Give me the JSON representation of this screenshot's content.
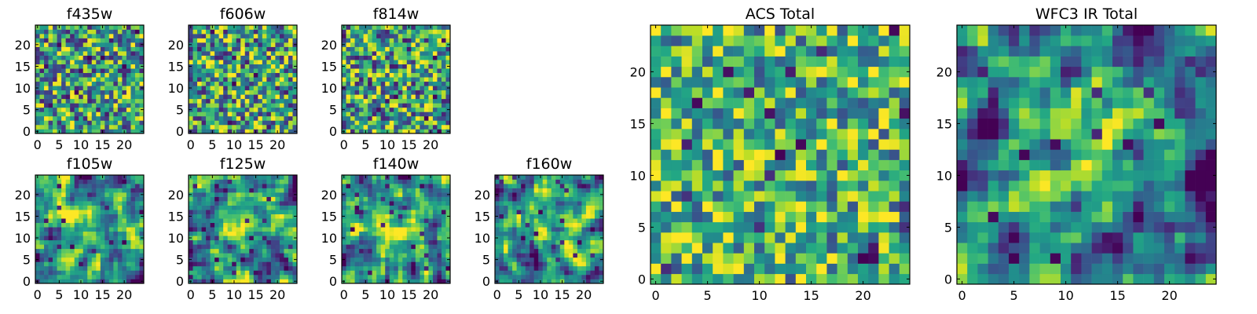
{
  "chart_data": [
    {
      "type": "heatmap",
      "title": "f435w",
      "grid_size": 25,
      "colormap": "viridis",
      "x_ticks": [
        "0",
        "5",
        "10",
        "15",
        "20"
      ],
      "y_ticks": [
        "0",
        "5",
        "10",
        "15",
        "20"
      ],
      "xlim": [
        0,
        24
      ],
      "ylim": [
        0,
        24
      ],
      "pattern": "noise",
      "seed": 11
    },
    {
      "type": "heatmap",
      "title": "f606w",
      "grid_size": 25,
      "colormap": "viridis",
      "x_ticks": [
        "0",
        "5",
        "10",
        "15",
        "20"
      ],
      "y_ticks": [
        "0",
        "5",
        "10",
        "15",
        "20"
      ],
      "xlim": [
        0,
        24
      ],
      "ylim": [
        0,
        24
      ],
      "pattern": "noise",
      "seed": 23
    },
    {
      "type": "heatmap",
      "title": "f814w",
      "grid_size": 25,
      "colormap": "viridis",
      "x_ticks": [
        "0",
        "5",
        "10",
        "15",
        "20"
      ],
      "y_ticks": [
        "0",
        "5",
        "10",
        "15",
        "20"
      ],
      "xlim": [
        0,
        24
      ],
      "ylim": [
        0,
        24
      ],
      "pattern": "noise",
      "seed": 37
    },
    {
      "type": "heatmap",
      "title": "f105w",
      "grid_size": 25,
      "colormap": "viridis",
      "x_ticks": [
        "0",
        "5",
        "10",
        "15",
        "20"
      ],
      "y_ticks": [
        "0",
        "5",
        "10",
        "15",
        "20"
      ],
      "xlim": [
        0,
        24
      ],
      "ylim": [
        0,
        24
      ],
      "pattern": "smooth",
      "seed": 41
    },
    {
      "type": "heatmap",
      "title": "f125w",
      "grid_size": 25,
      "colormap": "viridis",
      "x_ticks": [
        "0",
        "5",
        "10",
        "15",
        "20"
      ],
      "y_ticks": [
        "0",
        "5",
        "10",
        "15",
        "20"
      ],
      "xlim": [
        0,
        24
      ],
      "ylim": [
        0,
        24
      ],
      "pattern": "smooth",
      "seed": 53
    },
    {
      "type": "heatmap",
      "title": "f140w",
      "grid_size": 25,
      "colormap": "viridis",
      "x_ticks": [
        "0",
        "5",
        "10",
        "15",
        "20"
      ],
      "y_ticks": [
        "0",
        "5",
        "10",
        "15",
        "20"
      ],
      "xlim": [
        0,
        24
      ],
      "ylim": [
        0,
        24
      ],
      "pattern": "smooth",
      "seed": 67
    },
    {
      "type": "heatmap",
      "title": "f160w",
      "grid_size": 25,
      "colormap": "viridis",
      "x_ticks": [
        "0",
        "5",
        "10",
        "15",
        "20"
      ],
      "y_ticks": [
        "0",
        "5",
        "10",
        "15",
        "20"
      ],
      "xlim": [
        0,
        24
      ],
      "ylim": [
        0,
        24
      ],
      "pattern": "smooth",
      "seed": 79
    },
    {
      "type": "heatmap",
      "title": "ACS Total",
      "grid_size": 25,
      "colormap": "viridis",
      "x_ticks": [
        "0",
        "5",
        "10",
        "15",
        "20"
      ],
      "y_ticks": [
        "0",
        "5",
        "10",
        "15",
        "20"
      ],
      "xlim": [
        0,
        24
      ],
      "ylim": [
        0,
        24
      ],
      "pattern": "noise_bright",
      "seed": 97
    },
    {
      "type": "heatmap",
      "title": "WFC3 IR Total",
      "grid_size": 25,
      "colormap": "viridis",
      "x_ticks": [
        "0",
        "5",
        "10",
        "15",
        "20"
      ],
      "y_ticks": [
        "0",
        "5",
        "10",
        "15",
        "20"
      ],
      "xlim": [
        0,
        24
      ],
      "ylim": [
        0,
        24
      ],
      "pattern": "smooth_center",
      "seed": 113
    }
  ]
}
